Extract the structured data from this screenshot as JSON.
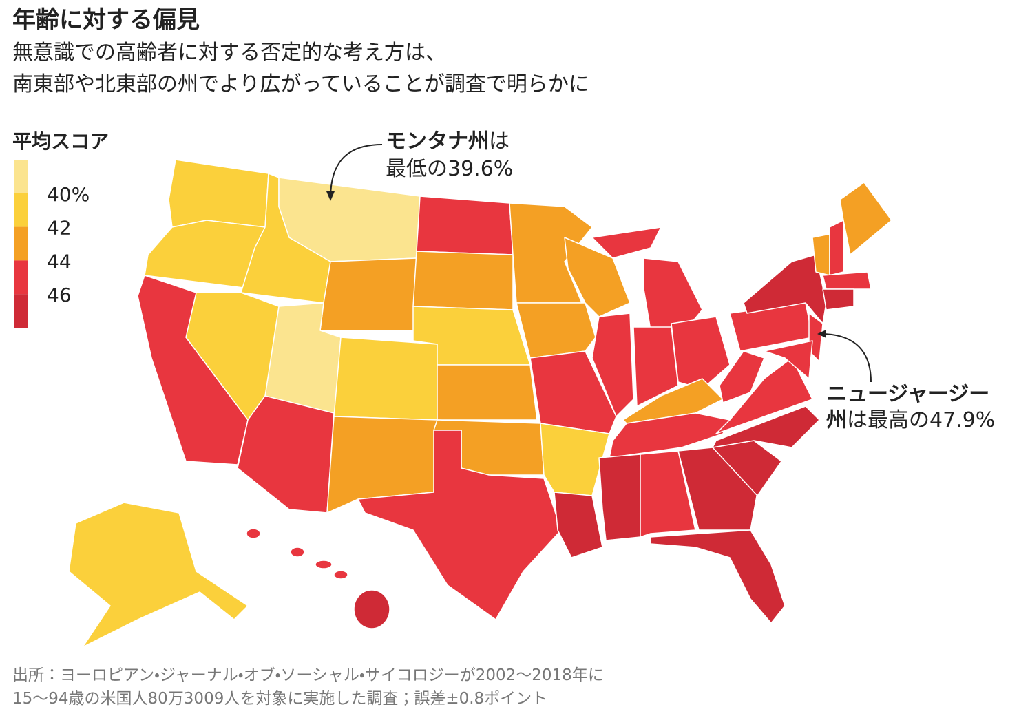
{
  "header": {
    "title": "年齢に対する偏見",
    "subtitle": [
      "無意識での高齢者に対する否定的な考え方は、",
      "南東部や北東部の州でより広がっていることが調査で明らかに"
    ]
  },
  "legend": {
    "title": "平均スコア",
    "range": [
      38,
      48
    ],
    "ticks": [
      {
        "value": 40,
        "label": "40%"
      },
      42,
      44,
      46
    ],
    "colors": [
      "#fbe48f",
      "#fbd03b",
      "#f4a024",
      "#e8363f",
      "#cf2a36"
    ]
  },
  "annotations": [
    {
      "bold": "モンタナ州",
      "text": "は",
      "line2": "最低の39.6%"
    },
    {
      "bold": "ニュージャージー",
      "bold2": "州",
      "text": "は最高の47.9%"
    }
  ],
  "source": [
    "出所：ヨーロピアン・ジャーナル・オブ・ソーシャル・サイコロジーが2002～2018年に",
    "15～94歳の米国人80万3009人を対象に実施した調査；誤差±0.8ポイント"
  ]
}
